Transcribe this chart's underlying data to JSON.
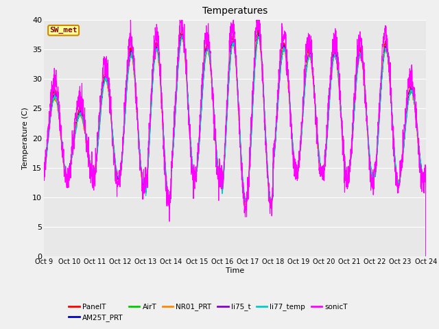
{
  "title": "Temperatures",
  "xlabel": "Time",
  "ylabel": "Temperature (C)",
  "ylim": [
    0,
    40
  ],
  "yticks": [
    0,
    5,
    10,
    15,
    20,
    25,
    30,
    35,
    40
  ],
  "xtick_labels": [
    "Oct 9",
    "Oct 10",
    "Oct 11",
    "Oct 12",
    "Oct 13",
    "Oct 14",
    "Oct 15",
    "Oct 16",
    "Oct 17",
    "Oct 18",
    "Oct 19",
    "Oct 20",
    "Oct 21",
    "Oct 22",
    "Oct 23",
    "Oct 24"
  ],
  "background_color": "#e8e8e8",
  "series_colors": {
    "PanelT": "#ff0000",
    "AM25T_PRT": "#0000cc",
    "AirT": "#00cc00",
    "NR01_PRT": "#ff8800",
    "li75_t": "#8800cc",
    "li77_temp": "#00cccc",
    "sonicT": "#ff00ff"
  },
  "annotation_text": "SW_met",
  "annotation_facecolor": "#ffff99",
  "annotation_edgecolor": "#cc8800",
  "annotation_textcolor": "#880000",
  "daily_highs": [
    28,
    25,
    31,
    35,
    36,
    38,
    36,
    37,
    38,
    36,
    35,
    35,
    35,
    36,
    29
  ],
  "daily_lows": [
    13,
    14,
    13,
    12,
    9,
    13,
    13,
    9,
    9,
    14,
    14,
    13,
    13,
    12,
    13
  ]
}
